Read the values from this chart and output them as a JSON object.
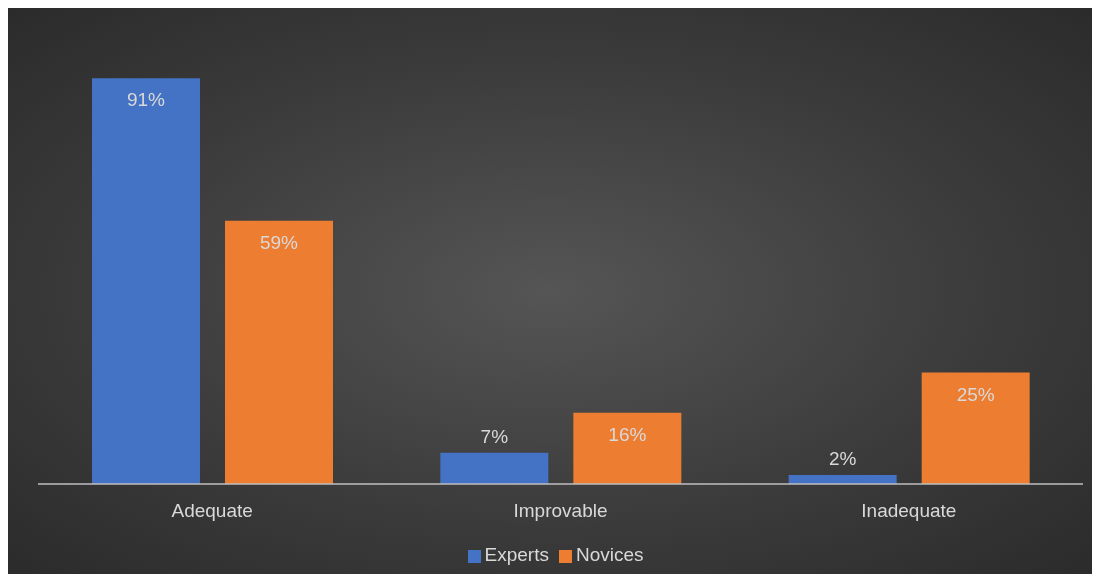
{
  "chart_data": {
    "type": "bar",
    "categories": [
      "Adequate",
      "Improvable",
      "Inadequate"
    ],
    "series": [
      {
        "name": "Experts",
        "color": "#4472c4",
        "values": [
          91,
          7,
          2
        ],
        "value_labels": [
          "91%",
          "7%",
          "2%"
        ]
      },
      {
        "name": "Novices",
        "color": "#ed7d31",
        "values": [
          59,
          16,
          25
        ],
        "value_labels": [
          "59%",
          "16%",
          "25%"
        ]
      }
    ],
    "tick_labels": "x",
    "legend": "bottom"
  }
}
